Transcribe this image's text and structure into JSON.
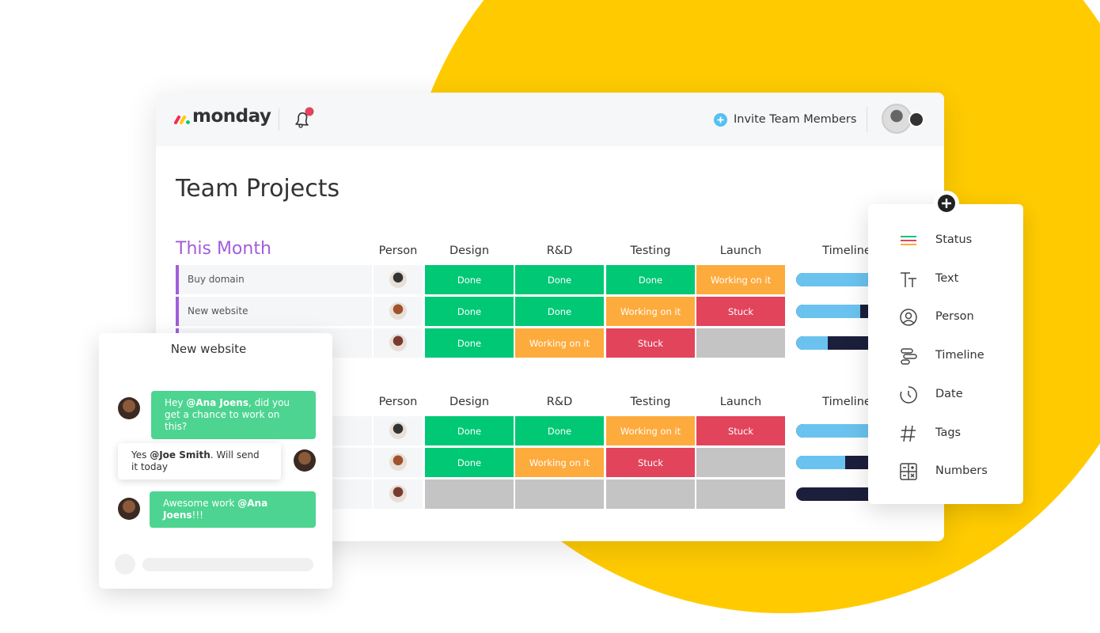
{
  "app": {
    "logo": "monday",
    "invite": "Invite Team Members"
  },
  "board": {
    "title": "Team Projects",
    "status_colors": {
      "Done": "#00c875",
      "Working on it": "#fdab3d",
      "Stuck": "#e2445c"
    },
    "groups": [
      {
        "title": "This Month",
        "columns": [
          "Person",
          "Design",
          "R&D",
          "Testing",
          "Launch",
          "Timeline"
        ],
        "rows": [
          {
            "name": "Buy domain",
            "cells": [
              "Done",
              "Done",
              "Done",
              "Working on it"
            ],
            "timeline": 1.0
          },
          {
            "name": "New website",
            "cells": [
              "Done",
              "Done",
              "Working on it",
              "Stuck"
            ],
            "timeline": 0.56
          },
          {
            "cells": [
              "Done",
              "Working on it",
              "Stuck",
              null
            ],
            "timeline": 0.28
          }
        ]
      },
      {
        "columns": [
          "Person",
          "Design",
          "R&D",
          "Testing",
          "Launch",
          "Timeline"
        ],
        "rows": [
          {
            "cells": [
              "Done",
              "Done",
              "Working on it",
              "Stuck"
            ],
            "timeline": 1.0
          },
          {
            "cells": [
              "Done",
              "Working on it",
              "Stuck",
              null
            ],
            "timeline": 0.43
          },
          {
            "cells": [
              null,
              null,
              null,
              null
            ],
            "timeline": 0
          }
        ]
      }
    ]
  },
  "chat": {
    "title": "New website",
    "messages": [
      {
        "before": "Hey ",
        "mention": "@Ana Joens",
        "after": ", did you get a chance to work on this?"
      },
      {
        "before": "Yes ",
        "mention": "@Joe Smith",
        "after": ". Will send it today"
      },
      {
        "before": "Awesome work ",
        "mention": "@Ana Joens",
        "after": "!!!"
      }
    ]
  },
  "column_menu": {
    "items": [
      "Status",
      "Text",
      "Person",
      "Timeline",
      "Date",
      "Tags",
      "Numbers"
    ]
  }
}
